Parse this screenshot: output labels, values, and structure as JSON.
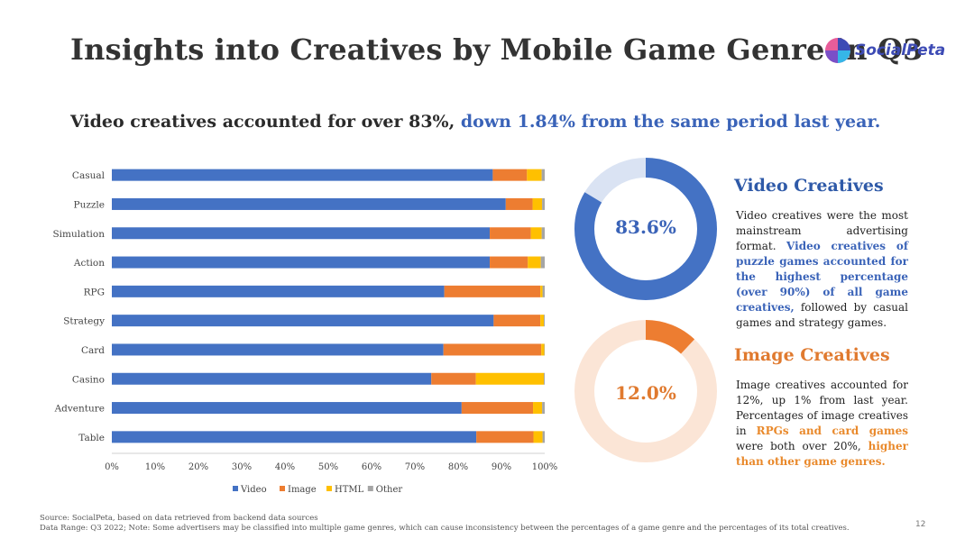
{
  "page": {
    "title": "Insights into Creatives by Mobile Game Genre in Q3",
    "logo_text": "SocialPeta",
    "subtitle_part1": "Video creatives accounted for over 83%,",
    "subtitle_part2": "down 1.84% from the same period last year.",
    "page_number": "12"
  },
  "colors": {
    "video": "#4472c4",
    "image": "#ed7d31",
    "html": "#ffc000",
    "other": "#a5a5a5",
    "video_ring_bg": "#dae3f3",
    "image_ring_bg": "#fbe5d6"
  },
  "chart_data": {
    "type": "bar",
    "orientation": "horizontal",
    "stacked": "percent",
    "categories": [
      "Casual",
      "Puzzle",
      "Simulation",
      "Action",
      "RPG",
      "Strategy",
      "Card",
      "Casino",
      "Adventure",
      "Table"
    ],
    "series": [
      {
        "name": "Video",
        "values": [
          88,
          91,
          87.3,
          87.3,
          76.8,
          88.2,
          76.6,
          73.8,
          80.8,
          84.2
        ]
      },
      {
        "name": "Image",
        "values": [
          7.9,
          6.2,
          9.5,
          8.8,
          22.2,
          10.8,
          22.6,
          10.3,
          16.5,
          13.2
        ]
      },
      {
        "name": "HTML",
        "values": [
          3.4,
          2.2,
          2.5,
          3.0,
          0.5,
          0.8,
          0.7,
          15.7,
          2.1,
          2.1
        ]
      },
      {
        "name": "Other",
        "values": [
          0.7,
          0.6,
          0.7,
          0.9,
          0.5,
          0.2,
          0.1,
          0.2,
          0.6,
          0.5
        ]
      }
    ],
    "x_ticks": [
      "0%",
      "10%",
      "20%",
      "30%",
      "40%",
      "50%",
      "60%",
      "70%",
      "80%",
      "90%",
      "100%"
    ],
    "xlim": [
      0,
      100
    ],
    "legend": [
      "Video",
      "Image",
      "HTML",
      "Other"
    ],
    "legend_position": "bottom"
  },
  "video_card": {
    "value": 83.6,
    "label": "83.6%",
    "title": "Video Creatives",
    "text1": "Video creatives were the most mainstream advertising format.",
    "text2": "Video creatives of puzzle games accounted for the highest percentage (over 90%) of all game creatives,",
    "text3": "followed by casual games and strategy games."
  },
  "image_card": {
    "value": 12.0,
    "label": "12.0%",
    "title": "Image Creatives",
    "text1": "Image creatives accounted for 12%, up 1% from last year. Percentages of image creatives in",
    "text2": "RPGs and card games",
    "text3": "were both over 20%,",
    "text4": "higher than other game genres."
  },
  "footnotes": {
    "line1": "Source: SocialPeta, based on data retrieved from backend data sources",
    "line2": "Data Range: Q3 2022;  Note: Some advertisers may be classified into multiple game genres, which can cause inconsistency between the percentages of a game genre and the percentages of its total creatives."
  }
}
